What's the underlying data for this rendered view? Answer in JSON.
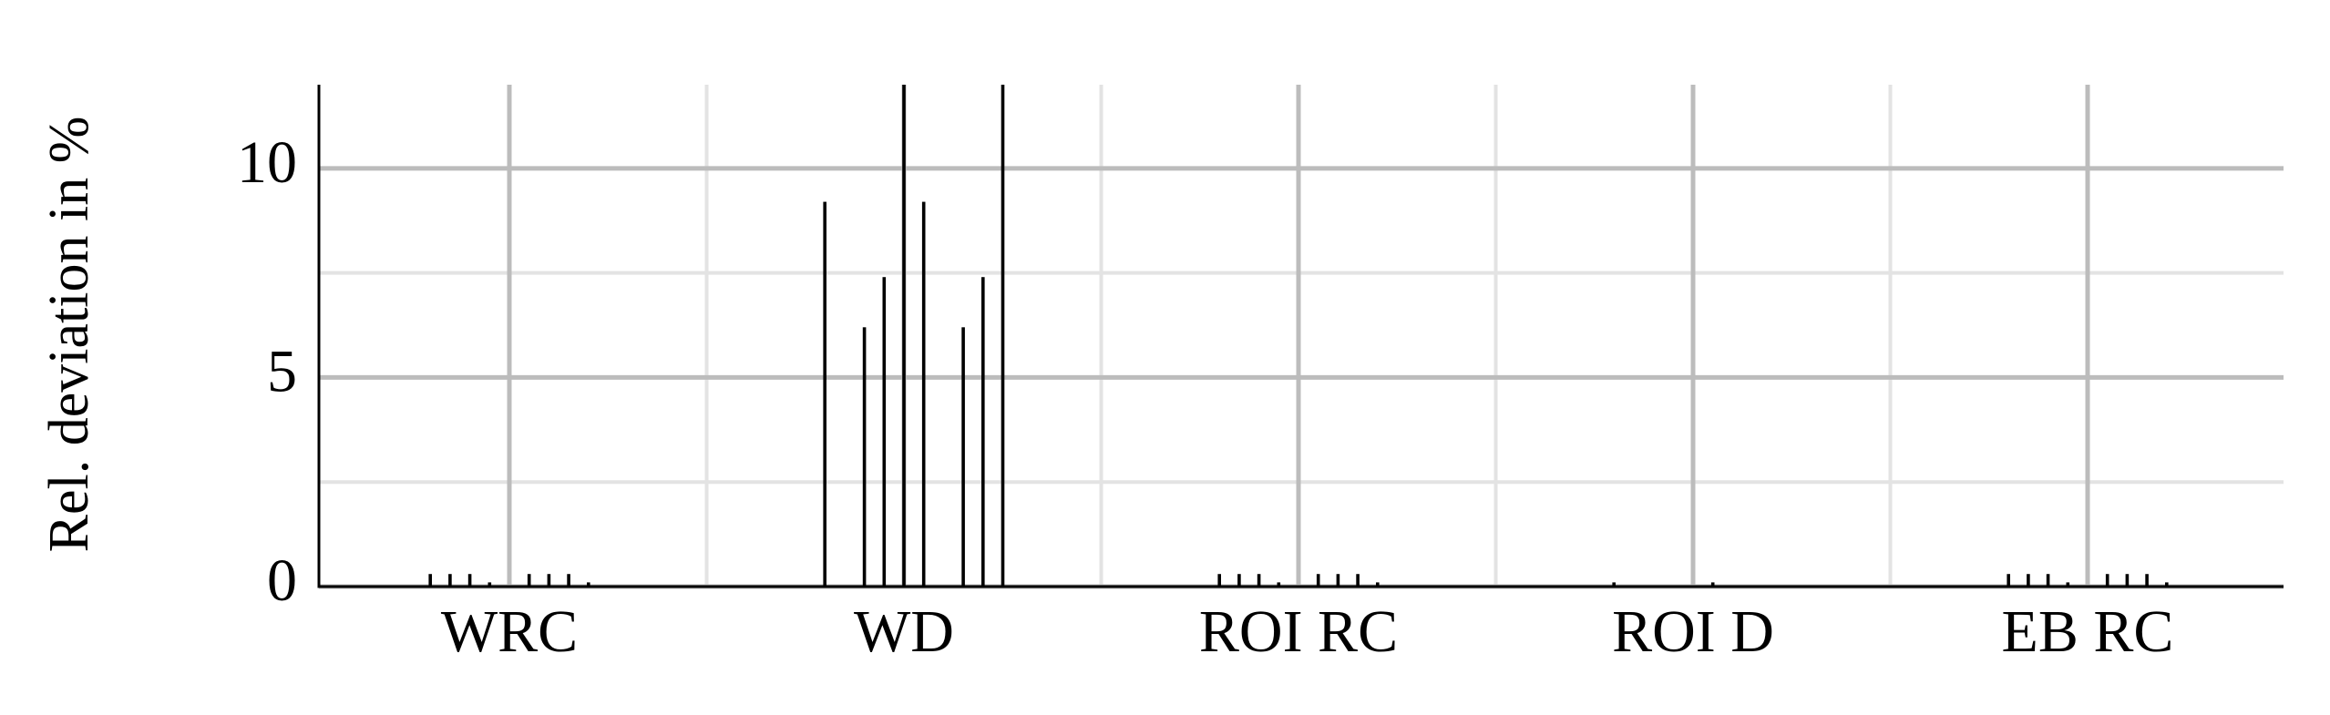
{
  "chart_data": {
    "type": "bar",
    "y_label": "Rel. deviation in %",
    "categories": [
      "WRC",
      "WD",
      "ROI RC",
      "ROI D",
      "EB RC"
    ],
    "series": [
      {
        "color": "#000000",
        "values": [
          0.3,
          9.2,
          0.3,
          0.1,
          0.3
        ]
      },
      {
        "color": "#000000",
        "values": [
          0.3,
          0,
          0.3,
          0,
          0.3
        ]
      },
      {
        "color": "#000000",
        "values": [
          0.3,
          6.2,
          0.3,
          0,
          0.3
        ]
      },
      {
        "color": "#000000",
        "values": [
          0.1,
          7.4,
          0.1,
          0,
          0.1
        ]
      },
      {
        "color": "#000000",
        "values": [
          0,
          12,
          0,
          0,
          0
        ]
      },
      {
        "color": "#000000",
        "values": [
          0.3,
          9.2,
          0.3,
          0.1,
          0.3
        ]
      },
      {
        "color": "#000000",
        "values": [
          0.3,
          0,
          0.3,
          0,
          0.3
        ]
      },
      {
        "color": "#000000",
        "values": [
          0.3,
          6.2,
          0.3,
          0,
          0.3
        ]
      },
      {
        "color": "#000000",
        "values": [
          0.1,
          7.4,
          0.1,
          0,
          0.1
        ]
      },
      {
        "color": "#000000",
        "values": [
          0,
          12,
          0,
          0,
          0
        ]
      }
    ],
    "ylim": [
      0,
      12
    ],
    "yticks": [
      0,
      5,
      10
    ],
    "minor_yticks": [
      2.5,
      7.5
    ],
    "grid": true
  }
}
